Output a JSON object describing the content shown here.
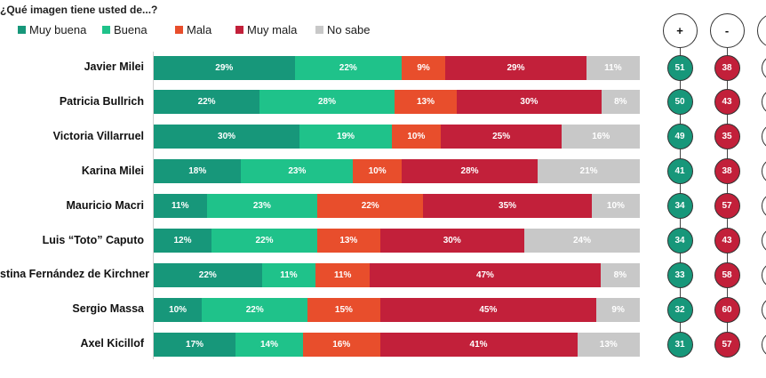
{
  "chart_data": {
    "type": "bar",
    "orientation": "horizontal",
    "stacked": true,
    "title": "¿Qué imagen tiene usted de...?",
    "unit": "%",
    "legend_position": "top-left",
    "grid": false,
    "xlim": [
      0,
      100
    ],
    "series": [
      {
        "name": "Muy buena",
        "color": "#17977a"
      },
      {
        "name": "Buena",
        "color": "#1fc28a"
      },
      {
        "name": "Mala",
        "color": "#e84e2c"
      },
      {
        "name": "Muy mala",
        "color": "#c2203a"
      },
      {
        "name": "No sabe",
        "color": "#c8c8c8"
      }
    ],
    "categories": [
      "Javier Milei",
      "Patricia Bullrich",
      "Victoria Villarruel",
      "Karina Milei",
      "Mauricio Macri",
      "Luis “Toto” Caputo",
      "stina Fernández de Kirchner",
      "Sergio Massa",
      "Axel Kicillof"
    ],
    "values": [
      [
        29,
        22,
        9,
        29,
        11
      ],
      [
        22,
        28,
        13,
        30,
        8
      ],
      [
        30,
        19,
        10,
        25,
        16
      ],
      [
        18,
        23,
        10,
        28,
        21
      ],
      [
        11,
        23,
        22,
        35,
        10
      ],
      [
        12,
        22,
        13,
        30,
        24
      ],
      [
        22,
        11,
        11,
        47,
        8
      ],
      [
        10,
        22,
        15,
        45,
        9
      ],
      [
        17,
        14,
        16,
        41,
        13
      ]
    ],
    "positive_header": "+",
    "negative_header": "-",
    "positive_totals": [
      51,
      50,
      49,
      41,
      34,
      34,
      33,
      32,
      31
    ],
    "negative_totals": [
      38,
      43,
      35,
      38,
      57,
      43,
      58,
      60,
      57
    ],
    "positive_color": "#17977a",
    "negative_color": "#c2203a"
  }
}
